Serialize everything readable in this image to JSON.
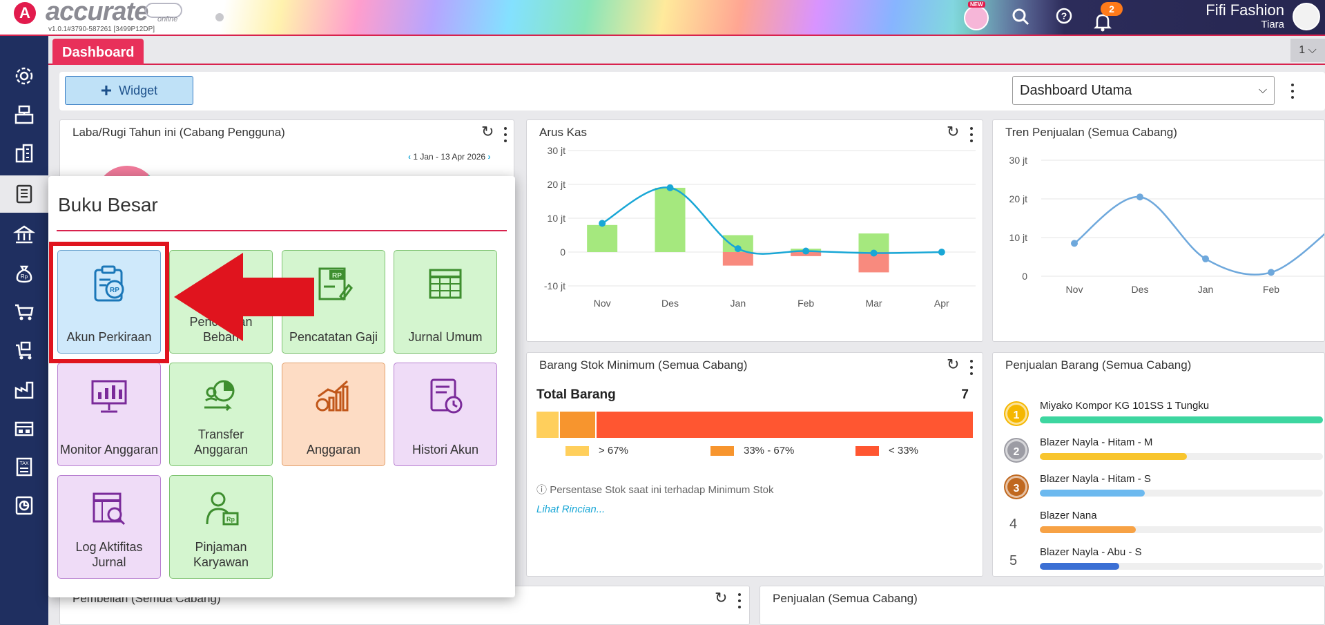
{
  "header": {
    "brand": "accurate",
    "brand_sub": "online",
    "version": "v1.0.1#3790-587261 [3499P12DP]",
    "new_badge": "NEW",
    "notification_count": "2",
    "company": "Fifi Fashion",
    "user": "Tiara",
    "colors": {
      "brand": "#e21b4d",
      "accent": "#d8224d"
    }
  },
  "sidebar": {
    "items": [
      {
        "icon": "gear-icon"
      },
      {
        "icon": "cash-register-icon"
      },
      {
        "icon": "building-icon"
      },
      {
        "icon": "ledger-book-icon"
      },
      {
        "icon": "bank-icon"
      },
      {
        "icon": "money-bag-icon"
      },
      {
        "icon": "cart-icon"
      },
      {
        "icon": "cart-box-icon"
      },
      {
        "icon": "factory-icon"
      },
      {
        "icon": "warehouse-icon"
      },
      {
        "icon": "tax-doc-icon"
      },
      {
        "icon": "report-chart-icon"
      }
    ]
  },
  "tabs": {
    "dashboard": "Dashboard",
    "count": "1"
  },
  "toolbar": {
    "widget_label": "Widget",
    "dashboard_select": "Dashboard Utama"
  },
  "laba_rugi": {
    "title": "Laba/Rugi Tahun ini (Cabang Pengguna)",
    "date_range": "1 Jan - 13 Apr 2026"
  },
  "arus_kas": {
    "title": "Arus Kas"
  },
  "tren_penjualan": {
    "title": "Tren Penjualan (Semua Cabang)"
  },
  "stok_minimum": {
    "title": "Barang Stok Minimum (Semua Cabang)",
    "total_label": "Total Barang",
    "total_value": "7",
    "segments": [
      {
        "share": 0.05,
        "color": "#ffcf5c",
        "legend": "> 67%"
      },
      {
        "share": 0.085,
        "color": "#f7952e",
        "legend": "33% - 67%"
      },
      {
        "share": 0.865,
        "color": "#ff5631",
        "legend": "< 33%"
      }
    ],
    "note": "Persentase Stok saat ini terhadap Minimum Stok",
    "link": "Lihat Rincian..."
  },
  "penjualan_barang": {
    "title": "Penjualan Barang (Semua Cabang)",
    "items": [
      {
        "rank": "1",
        "name": "Miyako Kompor KG 101SS 1 Tungku",
        "fill": 1.0,
        "color": "#3dd6a0"
      },
      {
        "rank": "2",
        "name": "Blazer Nayla - Hitam - M",
        "fill": 0.52,
        "color": "#f8c52e"
      },
      {
        "rank": "3",
        "name": "Blazer Nayla - Hitam - S",
        "fill": 0.37,
        "color": "#6cb9ef"
      },
      {
        "rank": "4",
        "name": "Blazer Nana",
        "fill": 0.34,
        "color": "#f7a245"
      },
      {
        "rank": "5",
        "name": "Blazer Nayla - Abu - S",
        "fill": 0.28,
        "color": "#3b6fd4"
      }
    ]
  },
  "pembelian": {
    "title": "Pembelian (Semua Cabang)"
  },
  "penjualan": {
    "title": "Penjualan (Semua Cabang)"
  },
  "popup": {
    "title": "Buku Besar",
    "tiles": [
      {
        "label": "Akun Perkiraan",
        "icon": "clipboard-rp-icon"
      },
      {
        "label": "Pencatatan Beban",
        "icon": "expense-icon"
      },
      {
        "label": "Pencatatan Gaji",
        "icon": "payroll-rp-icon"
      },
      {
        "label": "Jurnal Umum",
        "icon": "journal-grid-icon"
      },
      {
        "label": "Monitor Anggaran",
        "icon": "monitor-chart-icon"
      },
      {
        "label": "Transfer Anggaran",
        "icon": "transfer-pie-icon"
      },
      {
        "label": "Anggaran",
        "icon": "budget-growth-icon"
      },
      {
        "label": "Histori Akun",
        "icon": "history-book-icon"
      },
      {
        "label": "Log Aktifitas Jurnal",
        "icon": "log-search-icon"
      },
      {
        "label": "Pinjaman Karyawan",
        "icon": "employee-loan-icon"
      }
    ],
    "highlight_color": "#e0141e"
  },
  "chart_data": [
    {
      "type": "bar",
      "title": "Arus Kas",
      "categories": [
        "Nov",
        "Des",
        "Jan",
        "Feb",
        "Mar",
        "Apr"
      ],
      "series": [
        {
          "values": [
            8,
            19,
            5,
            1,
            5.5,
            0
          ],
          "color": "#a5e87e"
        },
        {
          "values": [
            0,
            0,
            -4,
            -1.2,
            -6,
            0
          ],
          "color": "#f88a7e"
        },
        {
          "type": "line",
          "values": [
            8.5,
            19,
            1,
            0.3,
            -0.3,
            0
          ],
          "color": "#19a7d6"
        }
      ],
      "ylim": [
        -10,
        30
      ],
      "yticks": [
        "30 jt",
        "20 jt",
        "10 jt",
        "0",
        "-10 jt"
      ]
    },
    {
      "type": "line",
      "title": "Tren Penjualan (Semua Cabang)",
      "categories": [
        "Nov",
        "Des",
        "Jan",
        "Feb"
      ],
      "series": [
        {
          "values": [
            8.5,
            20.5,
            4.5,
            1
          ],
          "color": "#6ea8dc"
        }
      ],
      "ylim": [
        0,
        30
      ],
      "yticks": [
        "30 jt",
        "20 jt",
        "10 jt",
        "0"
      ]
    }
  ]
}
